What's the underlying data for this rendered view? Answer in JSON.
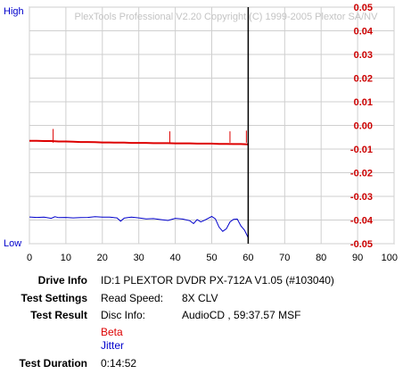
{
  "chart_data": {
    "type": "line",
    "watermark": "PlexTools Professional V2.20 Copyright (C) 1999-2005 Plextor SA/NV",
    "left_axis": {
      "top_label": "High",
      "bottom_label": "Low",
      "color": "#0000cc"
    },
    "xlim": [
      0,
      100
    ],
    "x_ticks": [
      0,
      10,
      20,
      30,
      40,
      50,
      60,
      70,
      80,
      90,
      100
    ],
    "right_ylim": [
      -0.05,
      0.05
    ],
    "right_ticks": [
      "0.05",
      "0.04",
      "0.03",
      "0.02",
      "0.01",
      "0.00",
      "-0.01",
      "-0.02",
      "-0.03",
      "-0.04",
      "-0.05"
    ],
    "right_tick_values": [
      0.05,
      0.04,
      0.03,
      0.02,
      0.01,
      0.0,
      -0.01,
      -0.02,
      -0.03,
      -0.04,
      -0.05
    ],
    "right_tick_color": "#cc0000",
    "grid": true,
    "end_marker_x": 60,
    "series": [
      {
        "name": "Beta",
        "color": "#dd0000",
        "x": [
          0,
          2,
          4,
          6,
          8,
          10,
          12,
          14,
          16,
          18,
          20,
          22,
          24,
          26,
          28,
          30,
          32,
          34,
          36,
          38,
          40,
          42,
          44,
          46,
          48,
          50,
          52,
          54,
          56,
          58,
          60
        ],
        "y": [
          -0.0065,
          -0.0065,
          -0.0066,
          -0.0066,
          -0.0068,
          -0.0068,
          -0.0069,
          -0.007,
          -0.007,
          -0.0071,
          -0.0072,
          -0.0072,
          -0.0073,
          -0.0073,
          -0.0074,
          -0.0074,
          -0.0074,
          -0.0075,
          -0.0075,
          -0.0075,
          -0.0076,
          -0.0076,
          -0.0076,
          -0.0077,
          -0.0077,
          -0.0077,
          -0.0078,
          -0.0078,
          -0.0079,
          -0.0079,
          -0.008
        ],
        "spikes": [
          {
            "x": 6.5,
            "y": -0.0015
          },
          {
            "x": 38.5,
            "y": -0.0025
          },
          {
            "x": 55,
            "y": -0.0025
          },
          {
            "x": 59.5,
            "y": -0.0022
          }
        ]
      },
      {
        "name": "Jitter",
        "color": "#0000cc",
        "x": [
          0,
          2,
          4,
          6,
          7,
          8,
          10,
          12,
          14,
          16,
          18,
          20,
          22,
          24,
          25,
          26,
          27,
          28,
          30,
          32,
          34,
          36,
          38,
          40,
          42,
          44,
          45,
          46,
          47,
          48,
          50,
          51,
          52,
          53,
          54,
          55,
          56,
          57,
          58,
          59,
          60
        ],
        "y": [
          -0.0387,
          -0.0389,
          -0.0388,
          -0.0393,
          -0.0386,
          -0.039,
          -0.0389,
          -0.0391,
          -0.039,
          -0.0389,
          -0.0386,
          -0.0388,
          -0.0388,
          -0.0391,
          -0.0405,
          -0.0392,
          -0.039,
          -0.0388,
          -0.0391,
          -0.0395,
          -0.0394,
          -0.0398,
          -0.0402,
          -0.0393,
          -0.0396,
          -0.0403,
          -0.0415,
          -0.0398,
          -0.0408,
          -0.0401,
          -0.0385,
          -0.0395,
          -0.043,
          -0.0448,
          -0.0437,
          -0.0408,
          -0.0397,
          -0.0396,
          -0.0425,
          -0.0443,
          -0.0475
        ]
      }
    ]
  },
  "info": {
    "drive_label": "Drive Info",
    "drive_value": "ID:1 PLEXTOR DVDR PX-712A V1.05 (#103040)",
    "settings_label": "Test Settings",
    "read_speed_label": "Read Speed:",
    "read_speed_value": "8X CLV",
    "result_label": "Test Result",
    "disc_info_label": "Disc Info:",
    "disc_info_value": "AudioCD , 59:37.57 MSF",
    "legend_beta": "Beta",
    "legend_jitter": "Jitter",
    "duration_label": "Test Duration",
    "duration_value": "0:14:52"
  }
}
